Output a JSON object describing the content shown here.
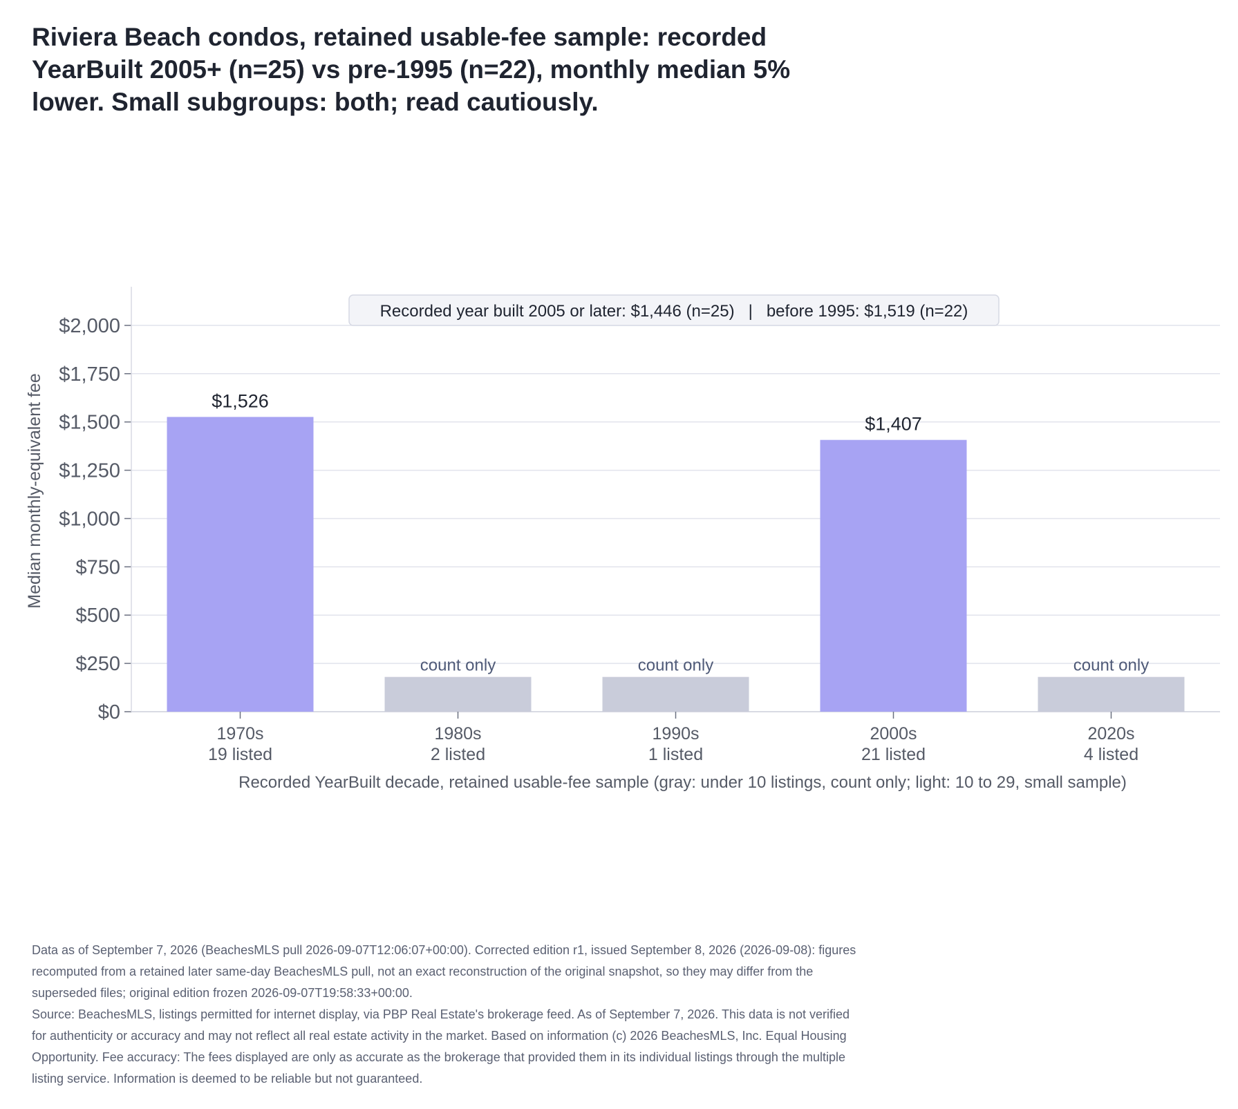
{
  "title_lines": [
    "Riviera Beach condos, retained usable-fee sample: recorded",
    "YearBuilt 2005+ (n=25) vs pre-1995 (n=22), monthly median 5%",
    "lower. Small subgroups: both; read cautiously."
  ],
  "colors": {
    "median_bar": "#a7a3f3",
    "count_only_bar": "#c9ccda",
    "grid": "#e1e3ec",
    "axis_text": "#555a66",
    "count_only_text": "#4f5a78",
    "legend_bg": "#f3f4f8",
    "legend_border": "#d6d9e4"
  },
  "chart_data": {
    "type": "bar",
    "categories": [
      "1970s",
      "1980s",
      "1990s",
      "2000s",
      "2020s"
    ],
    "listed_counts": [
      "19 listed",
      "2 listed",
      "1 listed",
      "21 listed",
      "4 listed"
    ],
    "values": [
      1526,
      null,
      null,
      1407,
      null
    ],
    "value_labels": [
      "$1,526",
      "count only",
      "count only",
      "$1,407",
      "count only"
    ],
    "bar_kind": [
      "median",
      "count_only",
      "count_only",
      "median",
      "count_only"
    ],
    "count_only_bar_height": 180,
    "ylabel": "Median monthly-equivalent fee",
    "xlabel": "Recorded YearBuilt decade, retained usable-fee sample (gray: under 10 listings, count only; light: 10 to 29, small sample)",
    "ylim": [
      0,
      2200
    ],
    "yticks": [
      0,
      250,
      500,
      750,
      1000,
      1250,
      1500,
      1750,
      2000
    ],
    "ytick_labels": [
      "$0",
      "$250",
      "$500",
      "$750",
      "$1,000",
      "$1,250",
      "$1,500",
      "$1,750",
      "$2,000"
    ],
    "grid": true,
    "annotation_box": "Recorded year built 2005 or later: $1,446 (n=25)   |   before 1995: $1,519 (n=22)"
  },
  "footer_lines": [
    "Data as of September 7, 2026 (BeachesMLS pull 2026-09-07T12:06:07+00:00). Corrected edition r1, issued September 8, 2026 (2026-09-08): figures",
    "recomputed from a retained later same-day BeachesMLS pull, not an exact reconstruction of the original snapshot, so they may differ from the",
    "superseded files; original edition frozen 2026-09-07T19:58:33+00:00.",
    "Source: BeachesMLS, listings permitted for internet display, via PBP Real Estate's brokerage feed. As of September 7, 2026. This data is not verified",
    "for authenticity or accuracy and may not reflect all real estate activity in the market. Based on information (c) 2026 BeachesMLS, Inc. Equal Housing",
    "Opportunity. Fee accuracy: The fees displayed are only as accurate as the brokerage that provided them in its individual listings through the multiple",
    "listing service. Information is deemed to be reliable but not guaranteed."
  ]
}
